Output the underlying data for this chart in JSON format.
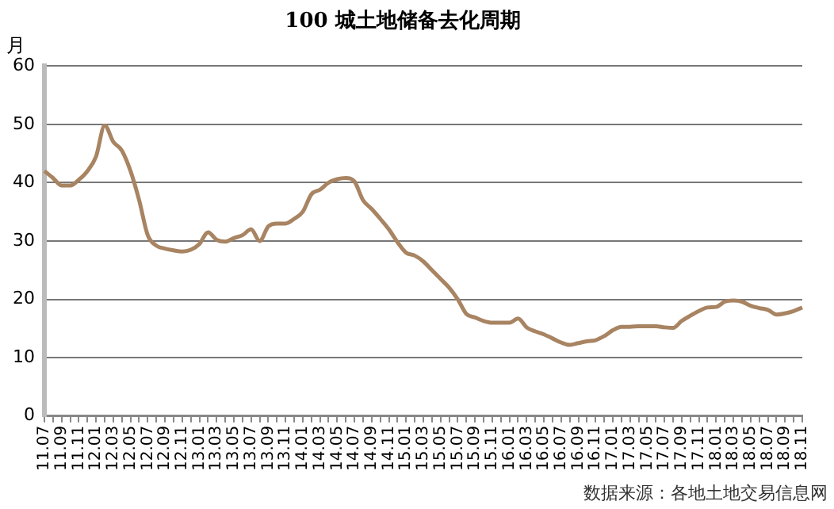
{
  "chart_data": {
    "type": "line",
    "title": "100 城土地储备去化周期",
    "ylabel": "月",
    "categories": [
      "11.07",
      null,
      "11.09",
      null,
      "11.11",
      null,
      "12.01",
      null,
      "12.03",
      null,
      "12.05",
      null,
      "12.07",
      null,
      "12.09",
      null,
      "12.11",
      null,
      "13.01",
      null,
      "13.03",
      null,
      "13.05",
      null,
      "13.07",
      null,
      "13.09",
      null,
      "13.11",
      null,
      "14.01",
      null,
      "14.03",
      null,
      "14.05",
      null,
      "14.07",
      null,
      "14.09",
      null,
      "14.11",
      null,
      "15.01",
      null,
      "15.03",
      null,
      "15.05",
      null,
      "15.07",
      null,
      "15.09",
      null,
      "15.11",
      null,
      "16.01",
      null,
      "16.03",
      null,
      "16.05",
      null,
      "16.07",
      null,
      "16.09",
      null,
      "16.11",
      null,
      "17.01",
      null,
      "17.03",
      null,
      "17.05",
      null,
      "17.07",
      null,
      "17.09",
      null,
      "17.11",
      null,
      "18.01",
      null,
      "18.03",
      null,
      "18.05",
      null,
      "18.07",
      null,
      "18.09",
      null,
      "18.11"
    ],
    "series": [
      {
        "color": "#a88462",
        "values": [
          42,
          40.8,
          39.5,
          39.5,
          40.5,
          42,
          44.5,
          49.8,
          47,
          45.5,
          42,
          37,
          31,
          29.2,
          28.7,
          28.4,
          28.2,
          28.5,
          29.5,
          31.5,
          30.2,
          29.9,
          30.5,
          31,
          32,
          30,
          32.5,
          33,
          33,
          33.8,
          35,
          38,
          38.8,
          40,
          40.6,
          40.8,
          40.2,
          37,
          35.5,
          33.8,
          32,
          29.8,
          28,
          27.5,
          26.5,
          25,
          23.5,
          22,
          20,
          17.5,
          16.9,
          16.3,
          16,
          16,
          16,
          16.7,
          15.2,
          14.5,
          14,
          13.3,
          12.6,
          12.2,
          12.5,
          12.8,
          13,
          13.7,
          14.7,
          15.3,
          15.3,
          15.4,
          15.4,
          15.4,
          15.2,
          15.1,
          16.3,
          17.2,
          18,
          18.6,
          18.7,
          19.6,
          19.8,
          19.6,
          18.9,
          18.5,
          18.2,
          17.4,
          17.6,
          18,
          18.6
        ]
      }
    ],
    "ylim": [
      0,
      60
    ],
    "yticks": [
      0,
      10,
      20,
      30,
      40,
      50,
      60
    ],
    "grid": "y",
    "legend": false,
    "marker": "none",
    "line_style": "solid",
    "annotations": [
      "数据来源：各地土地交易信息网"
    ]
  }
}
